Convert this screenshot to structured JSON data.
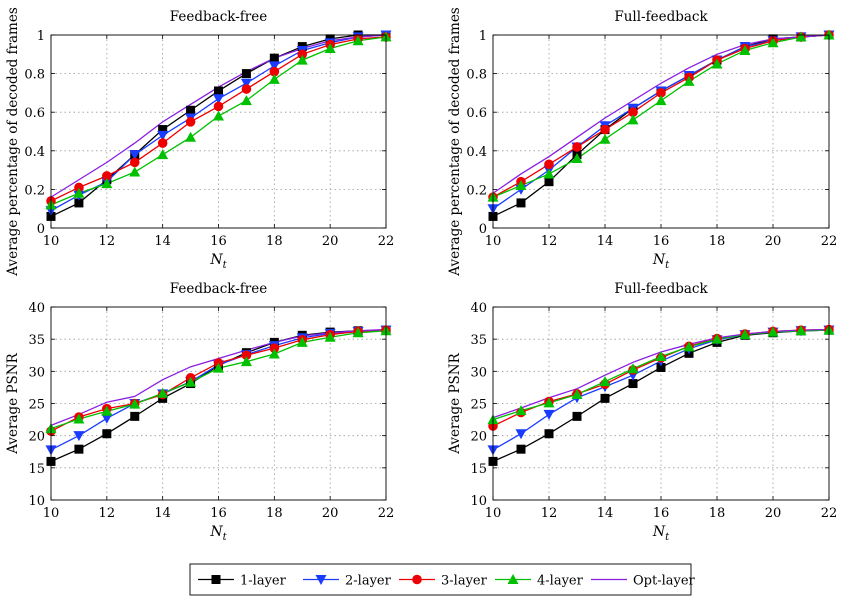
{
  "chart_data": [
    {
      "type": "line",
      "title": "Feedback-free",
      "xlabel": "N_t",
      "ylabel": "Average percentage of decoded frames",
      "x": [
        10,
        11,
        12,
        13,
        14,
        15,
        16,
        17,
        18,
        19,
        20,
        21,
        22
      ],
      "xlim": [
        10,
        22
      ],
      "ylim": [
        0,
        1
      ],
      "xticks": [
        10,
        12,
        14,
        16,
        18,
        20,
        22
      ],
      "yticks": [
        0,
        0.2,
        0.4,
        0.6,
        0.8,
        1
      ],
      "ytick_labels": [
        "0",
        "0.2",
        "0.4",
        "0.6",
        "0.8",
        "1"
      ],
      "grid": true,
      "series": [
        {
          "name": "1-layer",
          "values": [
            0.06,
            0.13,
            0.25,
            0.38,
            0.51,
            0.61,
            0.71,
            0.8,
            0.88,
            0.94,
            0.98,
            1.0,
            1.0
          ]
        },
        {
          "name": "2-layer",
          "values": [
            0.09,
            0.17,
            0.24,
            0.38,
            0.48,
            0.57,
            0.67,
            0.75,
            0.84,
            0.92,
            0.96,
            0.99,
            1.0
          ]
        },
        {
          "name": "3-layer",
          "values": [
            0.14,
            0.21,
            0.27,
            0.34,
            0.44,
            0.55,
            0.63,
            0.72,
            0.81,
            0.9,
            0.95,
            0.98,
            0.99
          ]
        },
        {
          "name": "4-layer",
          "values": [
            0.12,
            0.18,
            0.23,
            0.29,
            0.38,
            0.47,
            0.58,
            0.66,
            0.77,
            0.87,
            0.93,
            0.97,
            0.99
          ]
        },
        {
          "name": "Opt-layer",
          "values": [
            0.16,
            0.25,
            0.34,
            0.44,
            0.55,
            0.64,
            0.73,
            0.81,
            0.88,
            0.93,
            0.97,
            0.99,
            1.0
          ]
        }
      ]
    },
    {
      "type": "line",
      "title": "Full-feedback",
      "xlabel": "N_t",
      "ylabel": "Average percentage of decoded frames",
      "x": [
        10,
        11,
        12,
        13,
        14,
        15,
        16,
        17,
        18,
        19,
        20,
        21,
        22
      ],
      "xlim": [
        10,
        22
      ],
      "ylim": [
        0,
        1
      ],
      "xticks": [
        10,
        12,
        14,
        16,
        18,
        20,
        22
      ],
      "yticks": [
        0,
        0.2,
        0.4,
        0.6,
        0.8,
        1
      ],
      "ytick_labels": [
        "0",
        "0.2",
        "0.4",
        "0.6",
        "0.8",
        "1"
      ],
      "grid": true,
      "series": [
        {
          "name": "1-layer",
          "values": [
            0.06,
            0.13,
            0.24,
            0.38,
            0.51,
            0.62,
            0.71,
            0.79,
            0.87,
            0.94,
            0.98,
            0.99,
            1.0
          ]
        },
        {
          "name": "2-layer",
          "values": [
            0.1,
            0.2,
            0.3,
            0.42,
            0.53,
            0.62,
            0.71,
            0.79,
            0.87,
            0.94,
            0.97,
            0.99,
            1.0
          ]
        },
        {
          "name": "3-layer",
          "values": [
            0.16,
            0.24,
            0.33,
            0.42,
            0.51,
            0.6,
            0.7,
            0.78,
            0.87,
            0.93,
            0.97,
            0.99,
            1.0
          ]
        },
        {
          "name": "4-layer",
          "values": [
            0.16,
            0.22,
            0.28,
            0.36,
            0.46,
            0.56,
            0.66,
            0.76,
            0.85,
            0.92,
            0.96,
            0.99,
            1.0
          ]
        },
        {
          "name": "Opt-layer",
          "values": [
            0.18,
            0.28,
            0.37,
            0.47,
            0.57,
            0.66,
            0.75,
            0.83,
            0.9,
            0.95,
            0.98,
            0.99,
            1.0
          ]
        }
      ]
    },
    {
      "type": "line",
      "title": "Feedback-free",
      "xlabel": "N_t",
      "ylabel": "Average PSNR",
      "x": [
        10,
        11,
        12,
        13,
        14,
        15,
        16,
        17,
        18,
        19,
        20,
        21,
        22
      ],
      "xlim": [
        10,
        22
      ],
      "ylim": [
        10,
        40
      ],
      "xticks": [
        10,
        12,
        14,
        16,
        18,
        20,
        22
      ],
      "yticks": [
        10,
        15,
        20,
        25,
        30,
        35,
        40
      ],
      "ytick_labels": [
        "10",
        "15",
        "20",
        "25",
        "30",
        "35",
        "40"
      ],
      "grid": true,
      "series": [
        {
          "name": "1-layer",
          "values": [
            16.0,
            17.9,
            20.3,
            23.0,
            25.8,
            28.1,
            30.9,
            32.9,
            34.5,
            35.6,
            36.1,
            36.3,
            36.4
          ]
        },
        {
          "name": "2-layer",
          "values": [
            17.8,
            20.0,
            22.7,
            25.0,
            26.5,
            28.4,
            31.0,
            32.6,
            34.0,
            35.2,
            35.9,
            36.2,
            36.4
          ]
        },
        {
          "name": "3-layer",
          "values": [
            20.7,
            22.9,
            24.2,
            25.0,
            26.4,
            29.0,
            31.3,
            32.5,
            33.6,
            34.9,
            35.7,
            36.2,
            36.4
          ]
        },
        {
          "name": "4-layer",
          "values": [
            21.1,
            22.6,
            23.8,
            24.9,
            26.6,
            28.3,
            30.5,
            31.5,
            32.7,
            34.5,
            35.3,
            36.0,
            36.3
          ]
        },
        {
          "name": "Opt-layer",
          "values": [
            21.6,
            23.3,
            25.2,
            26.1,
            28.7,
            30.7,
            32.0,
            33.3,
            34.5,
            35.5,
            36.0,
            36.3,
            36.5
          ]
        }
      ]
    },
    {
      "type": "line",
      "title": "Full-feedback",
      "xlabel": "N_t",
      "ylabel": "Average PSNR",
      "x": [
        10,
        11,
        12,
        13,
        14,
        15,
        16,
        17,
        18,
        19,
        20,
        21,
        22
      ],
      "xlim": [
        10,
        22
      ],
      "ylim": [
        10,
        40
      ],
      "xticks": [
        10,
        12,
        14,
        16,
        18,
        20,
        22
      ],
      "yticks": [
        10,
        15,
        20,
        25,
        30,
        35,
        40
      ],
      "ytick_labels": [
        "10",
        "15",
        "20",
        "25",
        "30",
        "35",
        "40"
      ],
      "grid": true,
      "series": [
        {
          "name": "1-layer",
          "values": [
            16.0,
            17.9,
            20.3,
            23.0,
            25.8,
            28.1,
            30.6,
            32.8,
            34.5,
            35.6,
            36.0,
            36.3,
            36.4
          ]
        },
        {
          "name": "2-layer",
          "values": [
            17.8,
            20.3,
            23.3,
            25.9,
            27.6,
            29.4,
            31.6,
            33.5,
            34.9,
            35.7,
            36.1,
            36.3,
            36.4
          ]
        },
        {
          "name": "3-layer",
          "values": [
            21.5,
            23.6,
            25.3,
            26.5,
            28.0,
            30.2,
            32.1,
            33.9,
            35.1,
            35.8,
            36.2,
            36.4,
            36.5
          ]
        },
        {
          "name": "4-layer",
          "values": [
            22.5,
            23.9,
            25.1,
            26.4,
            28.4,
            30.4,
            32.3,
            33.8,
            35.0,
            35.7,
            36.1,
            36.3,
            36.4
          ]
        },
        {
          "name": "Opt-layer",
          "values": [
            22.8,
            24.3,
            25.9,
            27.3,
            29.4,
            31.4,
            33.0,
            34.2,
            35.2,
            35.8,
            36.2,
            36.4,
            36.5
          ]
        }
      ]
    }
  ],
  "legend": {
    "placement": "bottom-center",
    "entries": [
      {
        "name": "1-layer",
        "color": "#000000",
        "marker": "square"
      },
      {
        "name": "2-layer",
        "color": "#1a3cff",
        "marker": "triangle-down"
      },
      {
        "name": "3-layer",
        "color": "#ee0000",
        "marker": "circle"
      },
      {
        "name": "4-layer",
        "color": "#00c000",
        "marker": "triangle-up"
      },
      {
        "name": "Opt-layer",
        "color": "#8a1ee0",
        "marker": "none"
      }
    ]
  }
}
